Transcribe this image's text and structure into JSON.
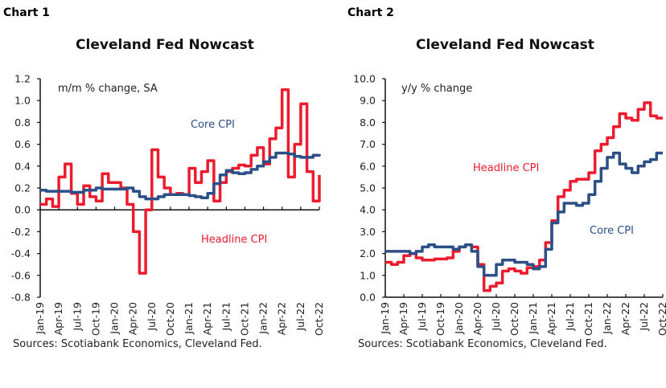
{
  "colors": {
    "headline": "#EC1C2E",
    "core": "#2B4F86",
    "axis": "#111111"
  },
  "chart_data": [
    {
      "type": "line",
      "label": "Chart 1",
      "title": "Cleveland Fed Nowcast",
      "unit_note": "m/m % change, SA",
      "source": "Sources: Scotiabank Economics, Cleveland Fed.",
      "ylim": [
        -0.8,
        1.2
      ],
      "yticks": [
        "1.2",
        "1.0",
        "0.8",
        "0.6",
        "0.4",
        "0.2",
        "0.0",
        "-0.2",
        "-0.4",
        "-0.6",
        "-0.8"
      ],
      "xtick_labels": [
        "Jan-19",
        "Apr-19",
        "Jul-19",
        "Oct-19",
        "Jan-20",
        "Apr-20",
        "Jul-20",
        "Oct-20",
        "Jan-21",
        "Apr-21",
        "Jul-21",
        "Oct-21",
        "Jan-22",
        "Apr-22",
        "Jul-22",
        "Oct-22"
      ],
      "x_range": [
        "Jan-19",
        "Oct-22"
      ],
      "grid": false,
      "series": [
        {
          "name": "Headline CPI",
          "values": [
            0.05,
            0.1,
            0.03,
            0.3,
            0.42,
            0.15,
            0.05,
            0.22,
            0.12,
            0.08,
            0.33,
            0.25,
            0.25,
            0.2,
            0.05,
            -0.2,
            -0.58,
            0.0,
            0.55,
            0.3,
            0.2,
            0.14,
            0.15,
            0.14,
            0.38,
            0.25,
            0.35,
            0.45,
            0.08,
            0.25,
            0.35,
            0.38,
            0.41,
            0.4,
            0.5,
            0.57,
            0.42,
            0.65,
            0.75,
            1.1,
            0.3,
            0.6,
            0.97,
            0.35,
            0.08,
            0.32
          ]
        },
        {
          "name": "Core CPI",
          "values": [
            0.18,
            0.17,
            0.17,
            0.17,
            0.17,
            0.16,
            0.16,
            0.18,
            0.18,
            0.2,
            0.19,
            0.19,
            0.19,
            0.19,
            0.2,
            0.17,
            0.12,
            0.1,
            0.1,
            0.12,
            0.14,
            0.14,
            0.14,
            0.14,
            0.13,
            0.12,
            0.11,
            0.15,
            0.24,
            0.32,
            0.36,
            0.34,
            0.33,
            0.34,
            0.37,
            0.4,
            0.44,
            0.48,
            0.52,
            0.52,
            0.51,
            0.49,
            0.48,
            0.48,
            0.5,
            0.51
          ]
        }
      ]
    },
    {
      "type": "line",
      "label": "Chart 2",
      "title": "Cleveland Fed Nowcast",
      "unit_note": "y/y % change",
      "source": "Sources: Scotiabank Economics, Cleveland Fed.",
      "ylim": [
        0,
        10
      ],
      "yticks": [
        "10.0",
        "9.0",
        "8.0",
        "7.0",
        "6.0",
        "5.0",
        "4.0",
        "3.0",
        "2.0",
        "1.0",
        "0.0"
      ],
      "xtick_labels": [
        "Jan-19",
        "Apr-19",
        "Jul-19",
        "Oct-19",
        "Jan-20",
        "Apr-20",
        "Jul-20",
        "Oct-20",
        "Jan-21",
        "Apr-21",
        "Jul-21",
        "Oct-21",
        "Jan-22",
        "Apr-22",
        "Jul-22",
        "Oct-22"
      ],
      "x_range": [
        "Jan-19",
        "Oct-22"
      ],
      "grid": false,
      "series": [
        {
          "name": "Headline CPI",
          "values": [
            1.6,
            1.5,
            1.6,
            1.9,
            2.0,
            1.8,
            1.7,
            1.7,
            1.75,
            1.75,
            1.8,
            2.1,
            2.3,
            2.4,
            2.3,
            1.5,
            0.3,
            0.5,
            0.65,
            1.2,
            1.3,
            1.2,
            1.1,
            1.35,
            1.4,
            1.7,
            2.5,
            3.5,
            4.6,
            4.9,
            5.3,
            5.4,
            5.4,
            5.7,
            6.7,
            7.0,
            7.3,
            7.8,
            8.4,
            8.2,
            8.1,
            8.6,
            8.9,
            8.3,
            8.2,
            8.2
          ]
        },
        {
          "name": "Core CPI",
          "values": [
            2.1,
            2.1,
            2.1,
            2.1,
            2.0,
            2.1,
            2.3,
            2.4,
            2.3,
            2.3,
            2.3,
            2.2,
            2.3,
            2.4,
            2.1,
            1.4,
            1.0,
            1.0,
            1.5,
            1.7,
            1.7,
            1.6,
            1.6,
            1.5,
            1.3,
            1.4,
            2.2,
            3.4,
            3.9,
            4.3,
            4.3,
            4.2,
            4.3,
            4.7,
            5.3,
            5.9,
            6.4,
            6.6,
            6.1,
            5.9,
            5.7,
            6.0,
            6.2,
            6.3,
            6.6,
            6.6
          ]
        }
      ]
    }
  ]
}
